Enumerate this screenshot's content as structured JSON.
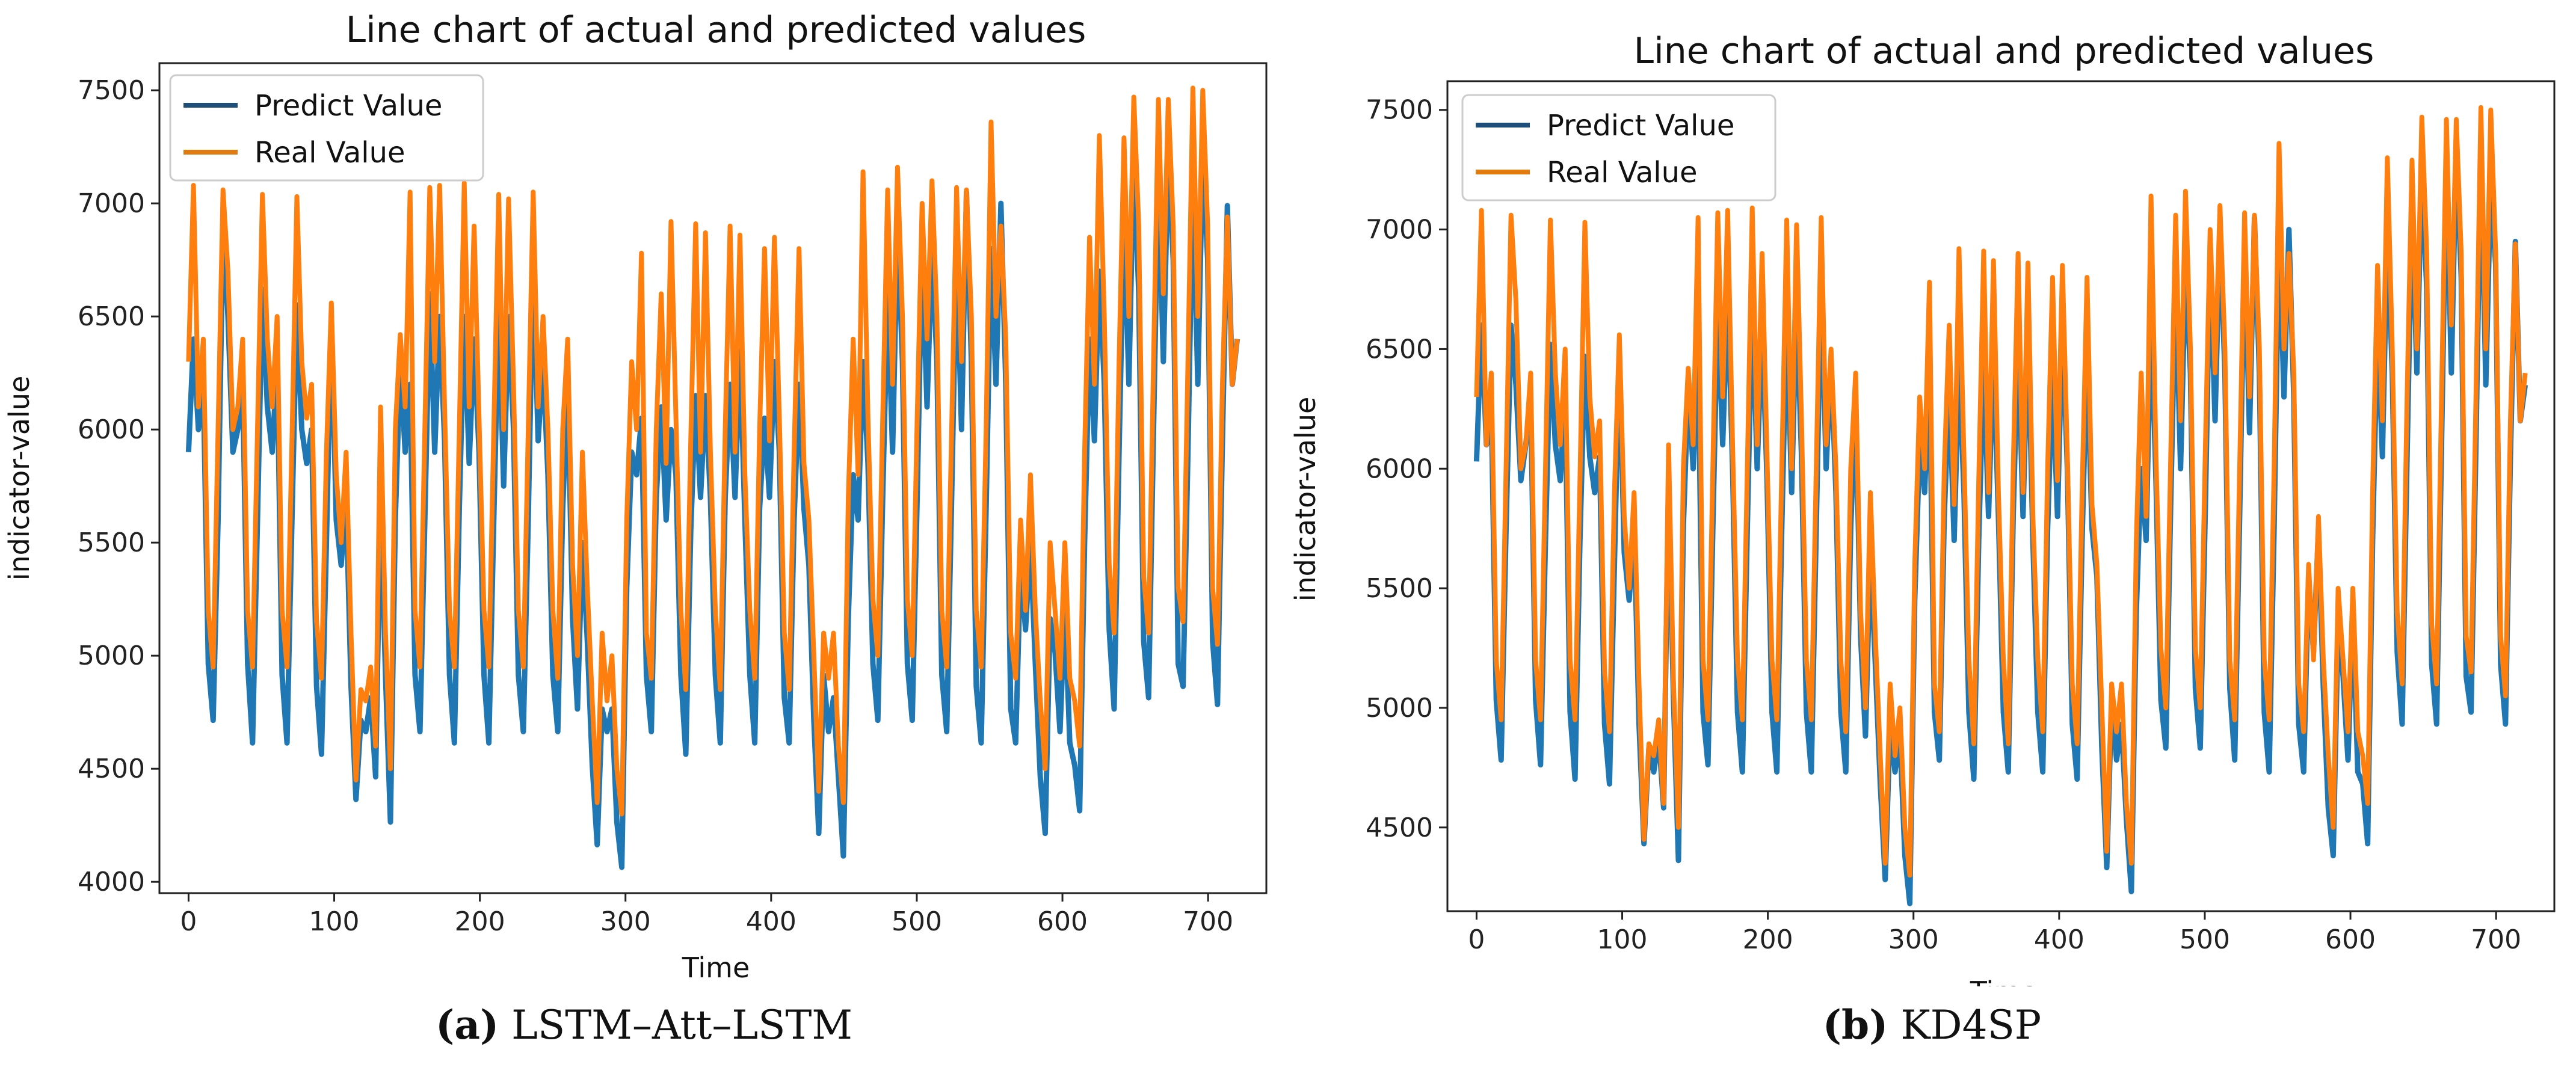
{
  "chart_data": [
    {
      "type": "line",
      "title": "Line chart of actual and predicted values",
      "xlabel": "Time",
      "ylabel": "indicator-value",
      "xlim": [
        -20,
        740
      ],
      "ylim": [
        3950,
        7620
      ],
      "xticks": [
        0,
        100,
        200,
        300,
        400,
        500,
        600,
        700
      ],
      "yticks": [
        4000,
        4500,
        5000,
        5500,
        6000,
        6500,
        7000,
        7500
      ],
      "legend_position": "top-left",
      "series": [
        {
          "name": "Predict Value",
          "color": "#1f77b4",
          "legend_color": "#1d4f7a",
          "low_factor": 1.12,
          "high_factor": 0.88,
          "values": [
            5900,
            6400,
            6000,
            6200,
            5000,
            4750,
            5600,
            6900,
            6500,
            5900,
            6000,
            6200,
            5000,
            4650,
            5600,
            6620,
            6100,
            5900,
            6300,
            4950,
            4650,
            5600,
            6550,
            6000,
            5850,
            6000,
            4900,
            4600,
            5500,
            6500,
            5600,
            5400,
            5700,
            4900,
            4400,
            4750,
            4700,
            4850,
            4500,
            5700,
            4950,
            4300,
            5600,
            6300,
            5900,
            6200,
            4950,
            4700,
            5600,
            6600,
            5900,
            6500,
            5950,
            4950,
            4650,
            5650,
            6500,
            5850,
            6400,
            5900,
            4950,
            4650,
            5600,
            6550,
            5750,
            6500,
            6000,
            4950,
            4700,
            5600,
            6750,
            5950,
            6300,
            5800,
            4950,
            4700,
            5650,
            6200,
            5200,
            4800,
            5500,
            5100,
            4550,
            4200,
            4800,
            4700,
            4800,
            4300,
            4100,
            5300,
            5900,
            5800,
            6050,
            4950,
            4700,
            5700,
            6100,
            5600,
            6000,
            5800,
            4950,
            4600,
            5550,
            6150,
            5700,
            6150,
            5700,
            4950,
            4650,
            5700,
            6200,
            5700,
            6350,
            5600,
            4950,
            4650,
            5650,
            6050,
            5700,
            6300,
            5900,
            4850,
            4650,
            5600,
            6200,
            5650,
            5400,
            4750,
            4250,
            4950,
            4700,
            4850,
            4500,
            4150,
            5200,
            5800,
            5600,
            6300,
            5850,
            5000,
            4750,
            5700,
            6600,
            5900,
            6900,
            6300,
            5000,
            4750,
            5700,
            6800,
            6100,
            6800,
            6300,
            4950,
            4700,
            5700,
            6800,
            6000,
            7050,
            6300,
            4900,
            4650,
            5650,
            6800,
            6200,
            7000,
            6200,
            4800,
            4650,
            5400,
            5150,
            5500,
            5000,
            4500,
            4250,
            5200,
            5050,
            4700,
            5250,
            4650,
            4550,
            4350,
            5500,
            6400,
            5950,
            6700,
            6200,
            5150,
            4800,
            5900,
            6950,
            6200,
            7220,
            6600,
            5100,
            4850,
            6000,
            7150,
            6300,
            7220,
            6750,
            5000,
            4900,
            5900,
            7100,
            6200,
            7230,
            6750,
            5100,
            4820,
            5950,
            6990,
            6200,
            6400
          ]
        },
        {
          "name": "Real Value",
          "color": "#ff7f0e",
          "legend_color": "#e07b12",
          "values": [
            6300,
            7080,
            6100,
            6400,
            5200,
            4950,
            6000,
            7060,
            6700,
            6000,
            6100,
            6400,
            5200,
            4950,
            6000,
            7040,
            6400,
            6100,
            6500,
            5200,
            4950,
            5950,
            7030,
            6300,
            6050,
            6200,
            5150,
            4900,
            5900,
            6560,
            5800,
            5500,
            5900,
            5100,
            4450,
            4850,
            4800,
            4950,
            4600,
            6100,
            5100,
            4500,
            6000,
            6420,
            6100,
            7050,
            5200,
            4950,
            6000,
            7070,
            6300,
            7080,
            6100,
            5200,
            4950,
            6000,
            7090,
            6100,
            6900,
            6050,
            5200,
            4950,
            6000,
            7040,
            6000,
            7020,
            6200,
            5200,
            4950,
            6000,
            7050,
            6100,
            6500,
            6000,
            5200,
            4900,
            6000,
            6400,
            5400,
            5000,
            5900,
            5300,
            4800,
            4350,
            5100,
            4800,
            5000,
            4500,
            4300,
            5600,
            6300,
            6000,
            6780,
            5100,
            4900,
            6000,
            6600,
            5850,
            6920,
            6050,
            5200,
            4850,
            5950,
            6910,
            5900,
            6870,
            5900,
            5200,
            4850,
            6000,
            6900,
            5900,
            6860,
            5800,
            5200,
            4900,
            6000,
            6800,
            5950,
            6850,
            6050,
            5100,
            4850,
            5900,
            6800,
            5850,
            5600,
            5000,
            4400,
            5100,
            4900,
            5100,
            4600,
            4350,
            5700,
            6400,
            5800,
            7140,
            6050,
            5250,
            5000,
            6050,
            7060,
            6200,
            7160,
            6500,
            5250,
            5000,
            6050,
            7000,
            6400,
            7100,
            6500,
            5200,
            4950,
            6000,
            7070,
            6300,
            7060,
            6500,
            5200,
            4950,
            6000,
            7360,
            6500,
            6900,
            6400,
            5100,
            4900,
            5600,
            5200,
            5800,
            5200,
            4800,
            4500,
            5500,
            5200,
            4900,
            5500,
            4900,
            4800,
            4600,
            5900,
            6850,
            6200,
            7300,
            6500,
            5400,
            5100,
            6300,
            7290,
            6500,
            7470,
            6900,
            5350,
            5100,
            6300,
            7460,
            6600,
            7460,
            6900,
            5300,
            5150,
            6300,
            7510,
            6500,
            7500,
            6900,
            5300,
            5050,
            6200,
            6940,
            6200,
            6400
          ]
        }
      ]
    },
    {
      "type": "line",
      "title": "Line chart of actual and predicted values",
      "xlabel": "Time",
      "ylabel": "indicator-value",
      "xlim": [
        -20,
        740
      ],
      "ylim": [
        4150,
        7620
      ],
      "xticks": [
        0,
        100,
        200,
        300,
        400,
        500,
        600,
        700
      ],
      "yticks": [
        4500,
        5000,
        5500,
        6000,
        6500,
        7000,
        7500
      ],
      "legend_position": "top-left",
      "series": [
        {
          "name": "Predict Value",
          "color": "#1f77b4",
          "legend_color": "#1d4f7a",
          "low_factor": 1.06,
          "high_factor": 0.94,
          "values": [
            6030,
            6600,
            6100,
            6250,
            5050,
            4800,
            5750,
            6600,
            6350,
            5950,
            6100,
            6300,
            5050,
            4780,
            5700,
            6520,
            6100,
            5950,
            6300,
            5000,
            4720,
            5700,
            6470,
            6050,
            5900,
            6050,
            4950,
            4700,
            5600,
            6500,
            5650,
            5450,
            5750,
            4950,
            4450,
            4850,
            4750,
            4900,
            4600,
            5950,
            5050,
            4380,
            5750,
            6350,
            6000,
            6500,
            5000,
            4780,
            5750,
            6700,
            6100,
            6750,
            6000,
            5000,
            4750,
            5750,
            6700,
            6000,
            6600,
            5950,
            5000,
            4750,
            5750,
            6650,
            5900,
            6700,
            6050,
            5000,
            4750,
            5750,
            6800,
            6000,
            6450,
            5900,
            5000,
            4750,
            5750,
            6300,
            5300,
            4900,
            5650,
            5200,
            4700,
            4300,
            4950,
            4750,
            4900,
            4400,
            4200,
            5450,
            6100,
            5900,
            6400,
            5000,
            4800,
            5800,
            6350,
            5700,
            6450,
            5900,
            5000,
            4720,
            5700,
            6450,
            5800,
            6500,
            5800,
            5000,
            4750,
            5800,
            6550,
            5800,
            6600,
            5700,
            5000,
            4750,
            5750,
            6400,
            5800,
            6600,
            6000,
            4950,
            4720,
            5700,
            6500,
            5750,
            5550,
            4850,
            4350,
            5050,
            4800,
            4950,
            4550,
            4250,
            5400,
            6000,
            5700,
            6650,
            5950,
            5050,
            4850,
            5850,
            6800,
            6000,
            6850,
            6400,
            5100,
            4850,
            5800,
            6900,
            6200,
            7000,
            6400,
            5100,
            4800,
            5800,
            6950,
            6150,
            7050,
            6400,
            5000,
            4750,
            5750,
            7000,
            6300,
            7000,
            6300,
            4950,
            4750,
            5550,
            5250,
            5750,
            5100,
            4600,
            4400,
            5350,
            5150,
            4800,
            5400,
            4750,
            4700,
            4450,
            5700,
            6600,
            6050,
            7000,
            6400,
            5250,
            4950,
            6050,
            7100,
            6400,
            7250,
            6750,
            5200,
            4950,
            6100,
            7300,
            6400,
            7350,
            6800,
            5150,
            5000,
            6100,
            7350,
            6350,
            7200,
            6850,
            5200,
            4950,
            6050,
            6950,
            6200,
            6350
          ]
        },
        {
          "name": "Real Value",
          "color": "#ff7f0e",
          "legend_color": "#e07b12",
          "values": [
            6300,
            7080,
            6100,
            6400,
            5200,
            4950,
            6000,
            7060,
            6700,
            6000,
            6100,
            6400,
            5200,
            4950,
            6000,
            7040,
            6400,
            6100,
            6500,
            5200,
            4950,
            5950,
            7030,
            6300,
            6050,
            6200,
            5150,
            4900,
            5900,
            6560,
            5800,
            5500,
            5900,
            5100,
            4450,
            4850,
            4800,
            4950,
            4600,
            6100,
            5100,
            4500,
            6000,
            6420,
            6100,
            7050,
            5200,
            4950,
            6000,
            7070,
            6300,
            7080,
            6100,
            5200,
            4950,
            6000,
            7090,
            6100,
            6900,
            6050,
            5200,
            4950,
            6000,
            7040,
            6000,
            7020,
            6200,
            5200,
            4950,
            6000,
            7050,
            6100,
            6500,
            6000,
            5200,
            4900,
            6000,
            6400,
            5400,
            5000,
            5900,
            5300,
            4800,
            4350,
            5100,
            4800,
            5000,
            4500,
            4300,
            5600,
            6300,
            6000,
            6780,
            5100,
            4900,
            6000,
            6600,
            5850,
            6920,
            6050,
            5200,
            4850,
            5950,
            6910,
            5900,
            6870,
            5900,
            5200,
            4850,
            6000,
            6900,
            5900,
            6860,
            5800,
            5200,
            4900,
            6000,
            6800,
            5950,
            6850,
            6050,
            5100,
            4850,
            5900,
            6800,
            5850,
            5600,
            5000,
            4400,
            5100,
            4900,
            5100,
            4600,
            4350,
            5700,
            6400,
            5800,
            7140,
            6050,
            5250,
            5000,
            6050,
            7060,
            6200,
            7160,
            6500,
            5250,
            5000,
            6050,
            7000,
            6400,
            7100,
            6500,
            5200,
            4950,
            6000,
            7070,
            6300,
            7060,
            6500,
            5200,
            4950,
            6000,
            7360,
            6500,
            6900,
            6400,
            5100,
            4900,
            5600,
            5200,
            5800,
            5200,
            4800,
            4500,
            5500,
            5200,
            4900,
            5500,
            4900,
            4800,
            4600,
            5900,
            6850,
            6200,
            7300,
            6500,
            5400,
            5100,
            6300,
            7290,
            6500,
            7470,
            6900,
            5350,
            5100,
            6300,
            7460,
            6600,
            7460,
            6900,
            5300,
            5150,
            6300,
            7510,
            6500,
            7500,
            6900,
            5300,
            5050,
            6200,
            6940,
            6200,
            6400
          ]
        }
      ]
    }
  ],
  "captions": [
    {
      "letter": "(a)",
      "text": " LSTM–Att–LSTM"
    },
    {
      "letter": "(b)",
      "text": " KD4SP"
    }
  ]
}
